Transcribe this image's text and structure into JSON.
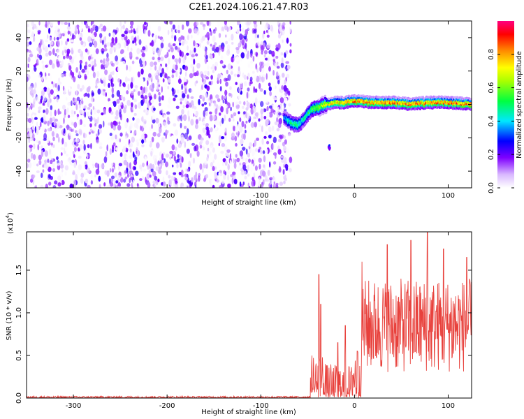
{
  "title": "C2E1.2024.106.21.47.R03",
  "chart_data": [
    {
      "type": "heatmap",
      "xlabel": "Height of straight line (km)",
      "ylabel": "Frequency (Hz)",
      "xlim": [
        -350,
        125
      ],
      "ylim": [
        -50,
        50
      ],
      "x_ticks": [
        -300,
        -200,
        -100,
        0,
        100
      ],
      "y_ticks": [
        -40,
        -20,
        0,
        20,
        40
      ],
      "colorbar": {
        "label": "Normalized spectral amplitude",
        "range": [
          0,
          1
        ],
        "ticks": [
          "0.0",
          "0.2",
          "0.4",
          "0.6",
          "0.8"
        ]
      },
      "noise_region": {
        "x_range": [
          -350,
          -68
        ],
        "y_range": [
          -50,
          50
        ],
        "amplitude_range": [
          0.0,
          0.25
        ]
      },
      "signal_track": {
        "x": [
          -75,
          -70,
          -65,
          -60,
          -55,
          -50,
          -45,
          -40,
          -35,
          -30,
          -20,
          -10,
          0,
          20,
          40,
          60,
          80,
          100,
          125
        ],
        "y": [
          -8,
          -10,
          -12,
          -12,
          -10,
          -6,
          -3,
          -2,
          -1,
          0,
          1,
          1,
          2,
          1,
          1,
          0,
          1,
          1,
          0
        ],
        "amplitude": [
          0.35,
          0.45,
          0.5,
          0.5,
          0.45,
          0.5,
          0.55,
          0.6,
          0.65,
          0.7,
          0.75,
          0.8,
          0.85,
          0.85,
          0.85,
          0.85,
          0.85,
          0.85,
          0.85
        ]
      },
      "isolated_blob": {
        "x": -27,
        "y": -26,
        "amplitude": 0.25
      }
    },
    {
      "type": "line",
      "xlabel": "Height of straight line (km)",
      "ylabel": "SNR (10 * v/v)",
      "y_multiplier_label": "(x10",
      "y_multiplier_exp": "4",
      "y_multiplier_close": ")",
      "xlim": [
        -350,
        125
      ],
      "ylim": [
        0,
        1.95
      ],
      "x_ticks": [
        -300,
        -200,
        -100,
        0,
        100
      ],
      "y_ticks": [
        "0.0",
        "0.5",
        "1.0",
        "1.5"
      ],
      "series": [
        {
          "color": "#e8413c",
          "segments": [
            {
              "x_start": -350,
              "x_end": -47,
              "base": 0.01,
              "spread": 0.012
            },
            {
              "x_start": -47,
              "x_end": -30,
              "base": 0.15,
              "spread": 0.4,
              "peaks": [
                [
                  -38,
                  1.45
                ],
                [
                  -36,
                  1.1
                ]
              ]
            },
            {
              "x_start": -30,
              "x_end": -2,
              "base": 0.1,
              "spread": 0.3,
              "peaks": [
                [
                  -10,
                  0.85
                ],
                [
                  -18,
                  0.65
                ]
              ]
            },
            {
              "x_start": -2,
              "x_end": 8,
              "base": 0.25,
              "spread": 0.35,
              "peaks": [
                [
                  3,
                  0.55
                ]
              ]
            },
            {
              "x_start": 8,
              "x_end": 125,
              "base": 0.85,
              "spread": 0.55,
              "peaks": [
                [
                  8,
                  1.6
                ],
                [
                  35,
                  1.8
                ],
                [
                  60,
                  1.85
                ],
                [
                  78,
                  1.95
                ],
                [
                  95,
                  1.75
                ],
                [
                  120,
                  1.65
                ]
              ]
            }
          ]
        }
      ]
    }
  ]
}
